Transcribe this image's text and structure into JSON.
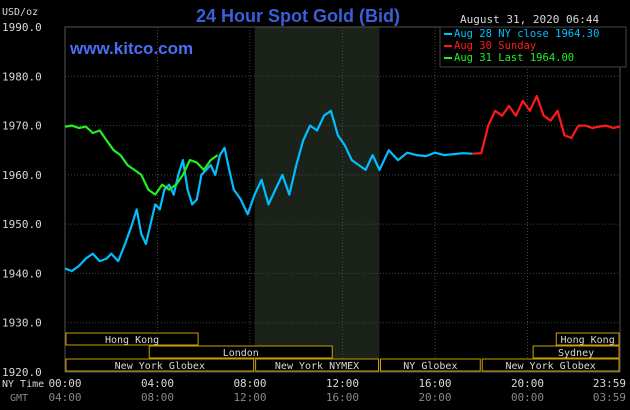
{
  "chart_data": {
    "type": "line",
    "title": "24 Hour Spot Gold (Bid)",
    "source": "www.kitco.com",
    "timestamp": "August 31, 2020 06:44",
    "y_unit": "USD/oz",
    "ylim": [
      1920,
      1990
    ],
    "y_ticks": [
      "1920.0",
      "1930.0",
      "1940.0",
      "1950.0",
      "1960.0",
      "1970.0",
      "1980.0",
      "1990.0"
    ],
    "x_label_nytime": "NY Time",
    "x_label_gmt": "GMT",
    "xlim": [
      0,
      24
    ],
    "x_ticks_nytime": [
      "00:00",
      "04:00",
      "08:00",
      "12:00",
      "16:00",
      "20:00",
      "23:59"
    ],
    "x_ticks_gmt": [
      "04:00",
      "08:00",
      "12:00",
      "16:00",
      "20:00",
      "00:00",
      "03:59"
    ],
    "grid": true,
    "legend_position": "top-right",
    "shaded_session": [
      8.2,
      13.6
    ],
    "colors": {
      "background": "#000000",
      "grid": "#444444",
      "shade": "#1a221a",
      "text": "#d8d8d8",
      "title": "#3a5fd6",
      "source": "#4a6ef5",
      "aug28": "#00bfff",
      "aug30": "#ff1a1a",
      "aug31": "#22ee22",
      "market_box": "#c8a000"
    },
    "legend": [
      {
        "label": "Aug 28 NY close 1964.30",
        "color": "#00bfff"
      },
      {
        "label": "Aug 30 Sunday",
        "color": "#ff1a1a"
      },
      {
        "label": "Aug 31 Last 1964.00",
        "color": "#22ee22"
      }
    ],
    "market_rows": [
      [
        {
          "label": "Hong Kong",
          "start": 0,
          "end": 5.8
        },
        {
          "label": "Hong Kong",
          "start": 21.2,
          "end": 24
        }
      ],
      [
        {
          "label": "London",
          "start": 3.6,
          "end": 11.6
        },
        {
          "label": "Sydney",
          "start": 20.2,
          "end": 24
        }
      ],
      [
        {
          "label": "New York Globex",
          "start": 0,
          "end": 8.2
        },
        {
          "label": "New York NYMEX",
          "start": 8.2,
          "end": 13.6
        },
        {
          "label": "NY Globex",
          "start": 13.6,
          "end": 18.0
        },
        {
          "label": "New York Globex",
          "start": 18.0,
          "end": 24
        }
      ]
    ],
    "series": [
      {
        "name": "Aug 28 NY close 1964.30",
        "color": "#00bfff",
        "x": [
          0,
          0.3,
          0.6,
          0.9,
          1.2,
          1.5,
          1.8,
          2.0,
          2.3,
          2.6,
          2.9,
          3.1,
          3.3,
          3.5,
          3.7,
          3.9,
          4.1,
          4.3,
          4.5,
          4.7,
          4.9,
          5.1,
          5.3,
          5.5,
          5.7,
          5.9,
          6.1,
          6.3,
          6.5,
          6.7,
          6.9,
          7.1,
          7.3,
          7.6,
          7.9,
          8.2,
          8.5,
          8.8,
          9.1,
          9.4,
          9.7,
          10.0,
          10.3,
          10.6,
          10.9,
          11.2,
          11.5,
          11.8,
          12.1,
          12.4,
          12.7,
          13.0,
          13.3,
          13.6,
          14.0,
          14.4,
          14.8,
          15.2,
          15.6,
          16.0,
          16.4,
          16.8,
          17.2,
          17.6
        ],
        "y": [
          1941,
          1940.5,
          1941.5,
          1943,
          1944,
          1942.5,
          1943,
          1944,
          1942.5,
          1946,
          1950,
          1953,
          1948,
          1946,
          1950,
          1954,
          1953,
          1957,
          1958,
          1956,
          1960,
          1963,
          1957,
          1954,
          1955,
          1960,
          1961,
          1962,
          1960,
          1964,
          1965.5,
          1961,
          1957,
          1955,
          1952,
          1956,
          1959,
          1954,
          1957,
          1960,
          1956,
          1962,
          1967,
          1970,
          1969,
          1972,
          1973,
          1968,
          1966,
          1963,
          1962,
          1961,
          1964,
          1961,
          1965,
          1963,
          1964.5,
          1964,
          1963.8,
          1964.5,
          1964,
          1964.2,
          1964.4,
          1964.3
        ]
      },
      {
        "name": "Aug 30 Sunday",
        "color": "#ff1a1a",
        "x": [
          17.6,
          18.0,
          18.3,
          18.6,
          18.9,
          19.2,
          19.5,
          19.8,
          20.1,
          20.4,
          20.7,
          21.0,
          21.3,
          21.6,
          21.9,
          22.2,
          22.5,
          22.8,
          23.1,
          23.4,
          23.7,
          23.99
        ],
        "y": [
          1964.3,
          1964.4,
          1970,
          1973,
          1972,
          1974,
          1972,
          1975,
          1973,
          1976,
          1972,
          1971,
          1973,
          1968,
          1967.5,
          1970,
          1970,
          1969.5,
          1969.8,
          1970,
          1969.5,
          1969.8
        ]
      },
      {
        "name": "Aug 31 Last 1964.00",
        "color": "#22ee22",
        "x": [
          0,
          0.3,
          0.6,
          0.9,
          1.2,
          1.5,
          1.8,
          2.1,
          2.4,
          2.7,
          3.0,
          3.3,
          3.6,
          3.9,
          4.2,
          4.5,
          4.8,
          5.1,
          5.4,
          5.7,
          6.0,
          6.3,
          6.6
        ],
        "y": [
          1969.8,
          1970,
          1969.5,
          1969.8,
          1968.5,
          1969,
          1967,
          1965,
          1964,
          1962,
          1961,
          1960,
          1957,
          1956,
          1958,
          1957,
          1958,
          1960,
          1963,
          1962.5,
          1961,
          1963,
          1964
        ]
      }
    ]
  }
}
